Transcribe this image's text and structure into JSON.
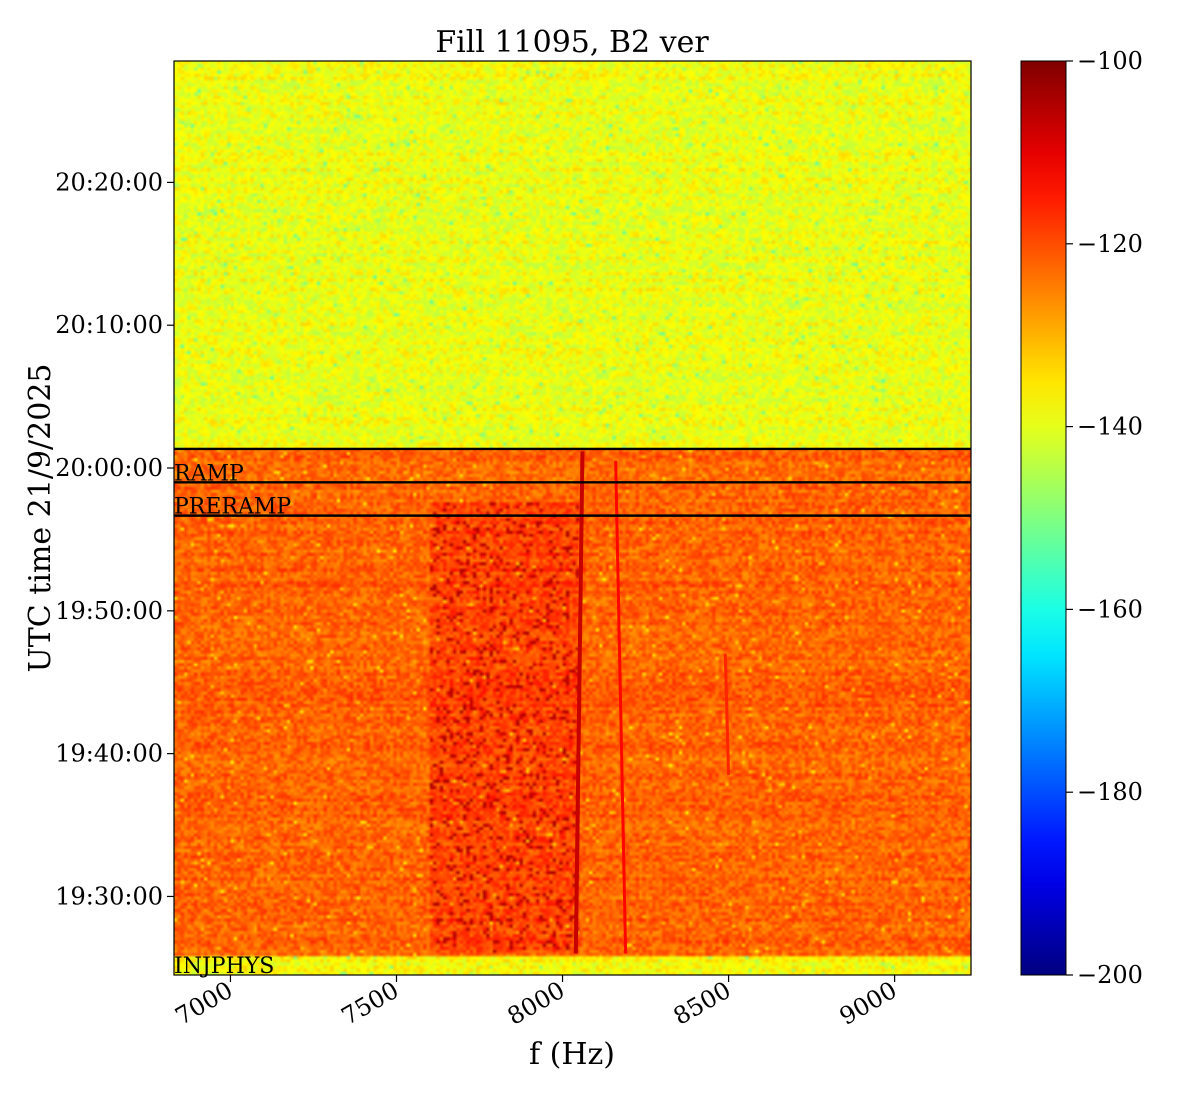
{
  "chart_data": {
    "type": "heatmap",
    "title": "Fill 11095, B2 ver",
    "xlabel": "f (Hz)",
    "ylabel": "UTC time 21/9/2025",
    "xlim": [
      6830,
      9230
    ],
    "ylim": [
      "19:24:30",
      "20:28:30"
    ],
    "x_ticks": [
      7000,
      7500,
      8000,
      8500,
      9000
    ],
    "y_ticks": [
      "19:30:00",
      "19:40:00",
      "19:50:00",
      "20:00:00",
      "20:10:00",
      "20:20:00"
    ],
    "colorbar": {
      "colormap": "jet",
      "range": [
        -200,
        -100
      ],
      "ticks": [
        -100,
        -120,
        -140,
        -160,
        -180,
        -200
      ]
    },
    "regions": [
      {
        "from": "19:24:30",
        "to": "19:25:45",
        "level": -138
      },
      {
        "from": "19:25:45",
        "to": "20:01:20",
        "level": -122
      },
      {
        "from": "20:01:20",
        "to": "20:28:30",
        "level": -139
      }
    ],
    "markers": [
      {
        "label": "INJPHYS",
        "time": "19:24:30"
      },
      {
        "label": "PRERAMP",
        "time": "19:56:40"
      },
      {
        "label": "RAMP",
        "time": "19:59:00"
      },
      {
        "label": "",
        "time": "20:01:20"
      }
    ],
    "lines": [
      {
        "f_start": 8040,
        "f_end": 8060,
        "t_from": "19:26:00",
        "t_to": "20:01:10",
        "level": -107
      },
      {
        "f_start": 8190,
        "f_end": 8160,
        "t_from": "19:26:00",
        "t_to": "20:00:30",
        "level": -113
      },
      {
        "f_start": 8500,
        "f_end": 8490,
        "t_from": "19:38:30",
        "t_to": "19:47:00",
        "level": -116
      }
    ],
    "band": {
      "f_min": 7600,
      "f_max": 8050,
      "t_from": "19:26:00",
      "t_to": "19:57:30",
      "level": -106
    }
  }
}
